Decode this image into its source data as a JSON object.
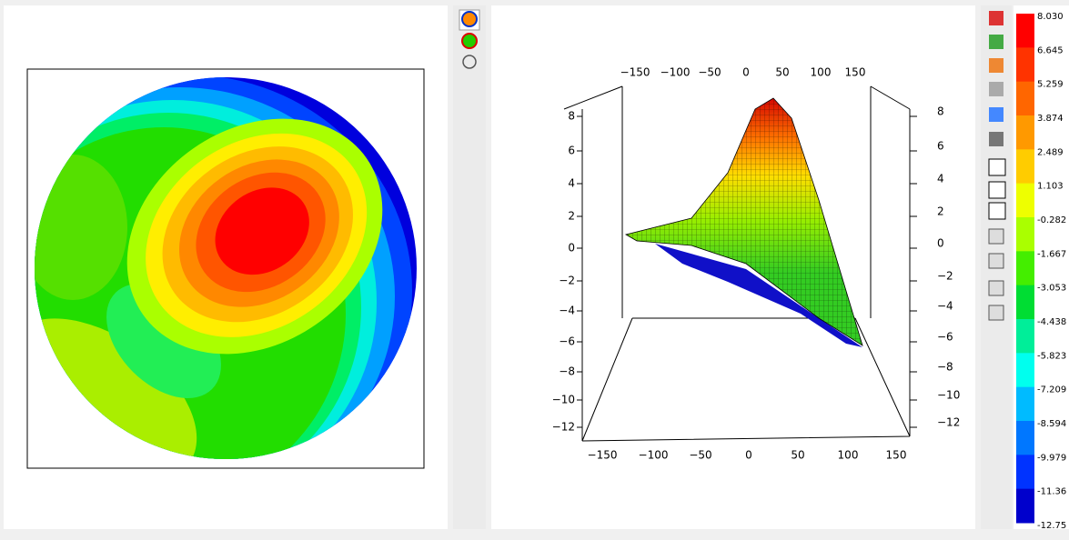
{
  "colorbar": {
    "labels": [
      "8.030",
      "6.645",
      "5.259",
      "3.874",
      "2.489",
      "1.103",
      "-0.282",
      "-1.667",
      "-3.053",
      "-4.438",
      "-5.823",
      "-7.209",
      "-8.594",
      "-9.979",
      "-11.36",
      "-12.75"
    ]
  },
  "plot3d": {
    "z_ticks": [
      "8",
      "6",
      "4",
      "2",
      "0",
      "−2",
      "−4",
      "−6",
      "−8",
      "−10",
      "−12"
    ],
    "x_ticks": [
      "−150",
      "−100",
      "−50",
      "0",
      "50",
      "100",
      "150"
    ]
  }
}
